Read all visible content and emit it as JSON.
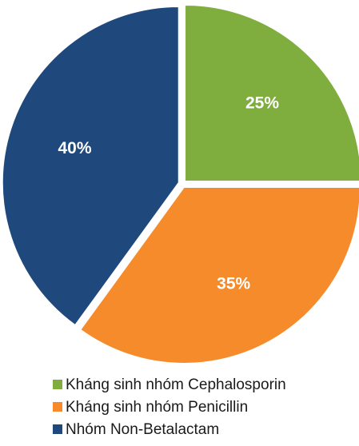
{
  "chart_data": {
    "type": "pie",
    "categories": [
      "Kháng sinh nhóm Cephalosporin",
      "Kháng sinh nhóm Penicillin",
      "Nhóm Non-Betalactam"
    ],
    "values": [
      25,
      35,
      40
    ],
    "value_labels": [
      "25%",
      "35%",
      "40%"
    ],
    "colors": [
      "#7fae3e",
      "#f68b2b",
      "#1f497d"
    ],
    "legend": "bottom"
  }
}
